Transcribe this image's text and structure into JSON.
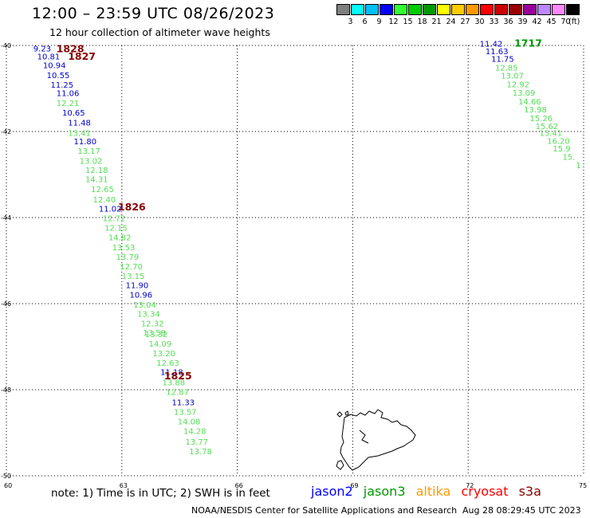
{
  "header": {
    "title": "12:00 – 23:59 UTC 08/26/2023",
    "subtitle": "12 hour collection of altimeter wave heights"
  },
  "color_scale": {
    "colors": [
      "#7f7f7f",
      "#00ffff",
      "#00bfff",
      "#0000ff",
      "#33ff33",
      "#00cc00",
      "#009900",
      "#ffff00",
      "#ffcc00",
      "#ff9900",
      "#ff0000",
      "#cc0000",
      "#990000",
      "#990099",
      "#bb88ff",
      "#ff88ff",
      "#000000"
    ],
    "labels": [
      "3",
      "6",
      "9",
      "12",
      "15",
      "18",
      "21",
      "24",
      "27",
      "30",
      "33",
      "36",
      "39",
      "42",
      "45",
      "70"
    ],
    "unit": "(ft)"
  },
  "map": {
    "lat_labels": [
      "-40",
      "-42",
      "-44",
      "-46",
      "-48",
      "-50"
    ],
    "lon_labels": [
      "60",
      "63",
      "66",
      "69",
      "72",
      "75"
    ],
    "lat_values": [
      -40,
      -42,
      -44,
      -46,
      -48,
      -50
    ],
    "lon_values": [
      60,
      63,
      66,
      69,
      72,
      75
    ],
    "grid": true
  },
  "satellite_colors": {
    "jason2": "#0000ff",
    "jason3": "#009900",
    "jason3_light": "#55dd55",
    "altika": "#ff9900",
    "cryosat": "#ff0000",
    "s3a": "#880000"
  },
  "chart_data": {
    "type": "scatter",
    "x_axis": "longitude (deg E)",
    "y_axis": "latitude (deg)",
    "xlim": [
      60,
      75
    ],
    "ylim": [
      -50,
      -40
    ],
    "time_labels": [
      {
        "text": "1828",
        "lon": 61.3,
        "lat": -40.16,
        "color": "#880000"
      },
      {
        "text": "1827",
        "lon": 61.6,
        "lat": -40.33,
        "color": "#880000"
      },
      {
        "text": "1826",
        "lon": 62.9,
        "lat": -43.83,
        "color": "#880000"
      },
      {
        "text": "1825",
        "lon": 64.1,
        "lat": -47.76,
        "color": "#880000"
      },
      {
        "text": "1717",
        "lon": 73.2,
        "lat": -40.03,
        "color": "#009900"
      }
    ],
    "tracks": [
      {
        "points": [
          {
            "v": "9.23",
            "lon": 60.7,
            "lat": -40.14,
            "c": "b"
          },
          {
            "v": "10.81",
            "lon": 60.8,
            "lat": -40.32,
            "c": "b"
          },
          {
            "v": "10.94",
            "lon": 60.95,
            "lat": -40.53,
            "c": "b"
          },
          {
            "v": "10.55",
            "lon": 61.05,
            "lat": -40.76,
            "c": "b"
          },
          {
            "v": "11.25",
            "lon": 61.15,
            "lat": -40.98,
            "c": "b"
          },
          {
            "v": "11.06",
            "lon": 61.3,
            "lat": -41.18,
            "c": "b"
          },
          {
            "v": "12.21",
            "lon": 61.3,
            "lat": -41.41,
            "c": "g"
          },
          {
            "v": "10.65",
            "lon": 61.45,
            "lat": -41.63,
            "c": "b"
          },
          {
            "v": "11.48",
            "lon": 61.6,
            "lat": -41.86,
            "c": "b"
          },
          {
            "v": "13.41",
            "lon": 61.6,
            "lat": -42.1,
            "c": "g"
          },
          {
            "v": "11.80",
            "lon": 61.75,
            "lat": -42.3,
            "c": "b"
          },
          {
            "v": "13.17",
            "lon": 61.85,
            "lat": -42.52,
            "c": "g"
          },
          {
            "v": "13.02",
            "lon": 61.9,
            "lat": -42.75,
            "c": "g"
          },
          {
            "v": "12.18",
            "lon": 62.05,
            "lat": -42.96,
            "c": "g"
          },
          {
            "v": "14.31",
            "lon": 62.05,
            "lat": -43.18,
            "c": "g"
          },
          {
            "v": "12.65",
            "lon": 62.2,
            "lat": -43.41,
            "c": "g"
          },
          {
            "v": "12.40",
            "lon": 62.25,
            "lat": -43.65,
            "c": "g"
          },
          {
            "v": "11.02",
            "lon": 62.4,
            "lat": -43.86,
            "c": "b"
          },
          {
            "v": "12.72",
            "lon": 62.5,
            "lat": -44.08,
            "c": "g"
          },
          {
            "v": "12.15",
            "lon": 62.55,
            "lat": -44.31,
            "c": "g"
          },
          {
            "v": "14.82",
            "lon": 62.65,
            "lat": -44.53,
            "c": "g"
          },
          {
            "v": "13.53",
            "lon": 62.75,
            "lat": -44.76,
            "c": "g"
          },
          {
            "v": "13.79",
            "lon": 62.85,
            "lat": -44.98,
            "c": "g"
          },
          {
            "v": "12.70",
            "lon": 62.95,
            "lat": -45.2,
            "c": "g"
          },
          {
            "v": "13.15",
            "lon": 63.0,
            "lat": -45.43,
            "c": "g"
          },
          {
            "v": "11.90",
            "lon": 63.1,
            "lat": -45.64,
            "c": "b"
          },
          {
            "v": "10.96",
            "lon": 63.2,
            "lat": -45.86,
            "c": "b"
          },
          {
            "v": "13.04",
            "lon": 63.3,
            "lat": -46.09,
            "c": "g"
          },
          {
            "v": "13.34",
            "lon": 63.4,
            "lat": -46.31,
            "c": "g"
          },
          {
            "v": "12.32",
            "lon": 63.5,
            "lat": -46.53,
            "c": "g"
          },
          {
            "v": "13.59",
            "lon": 63.55,
            "lat": -46.74,
            "c": "g"
          },
          {
            "v": "13.32",
            "lon": 63.6,
            "lat": -46.78,
            "c": "g"
          },
          {
            "v": "14.09",
            "lon": 63.7,
            "lat": -47.0,
            "c": "g"
          },
          {
            "v": "13.20",
            "lon": 63.8,
            "lat": -47.22,
            "c": "g"
          },
          {
            "v": "12.63",
            "lon": 63.9,
            "lat": -47.44,
            "c": "g"
          },
          {
            "v": "11.18",
            "lon": 64.0,
            "lat": -47.66,
            "c": "b"
          },
          {
            "v": "13.88",
            "lon": 64.05,
            "lat": -47.9,
            "c": "g"
          },
          {
            "v": "12.87",
            "lon": 64.15,
            "lat": -48.12,
            "c": "g"
          },
          {
            "v": "11.33",
            "lon": 64.3,
            "lat": -48.36,
            "c": "b"
          },
          {
            "v": "13.57",
            "lon": 64.35,
            "lat": -48.58,
            "c": "g"
          },
          {
            "v": "14.08",
            "lon": 64.45,
            "lat": -48.81,
            "c": "g"
          },
          {
            "v": "14.28",
            "lon": 64.6,
            "lat": -49.03,
            "c": "g"
          },
          {
            "v": "13.77",
            "lon": 64.65,
            "lat": -49.28,
            "c": "g"
          },
          {
            "v": "13.78",
            "lon": 64.75,
            "lat": -49.5,
            "c": "g"
          }
        ]
      },
      {
        "points": [
          {
            "v": "11.42",
            "lon": 72.3,
            "lat": -40.03,
            "c": "b"
          },
          {
            "v": "11.63",
            "lon": 72.45,
            "lat": -40.2,
            "c": "b"
          },
          {
            "v": "11.75",
            "lon": 72.6,
            "lat": -40.38,
            "c": "b"
          },
          {
            "v": "12.85",
            "lon": 72.7,
            "lat": -40.58,
            "c": "g"
          },
          {
            "v": "13.07",
            "lon": 72.85,
            "lat": -40.77,
            "c": "g"
          },
          {
            "v": "12.92",
            "lon": 73.0,
            "lat": -40.97,
            "c": "g"
          },
          {
            "v": "13.09",
            "lon": 73.15,
            "lat": -41.17,
            "c": "g"
          },
          {
            "v": "14.66",
            "lon": 73.3,
            "lat": -41.37,
            "c": "g"
          },
          {
            "v": "13.98",
            "lon": 73.45,
            "lat": -41.56,
            "c": "g"
          },
          {
            "v": "15.26",
            "lon": 73.6,
            "lat": -41.76,
            "c": "g"
          },
          {
            "v": "15.62",
            "lon": 73.75,
            "lat": -41.94,
            "c": "g"
          },
          {
            "v": "15.41",
            "lon": 73.85,
            "lat": -42.1,
            "c": "g"
          },
          {
            "v": "16.20",
            "lon": 74.05,
            "lat": -42.29,
            "c": "g"
          },
          {
            "v": "15.9",
            "lon": 74.2,
            "lat": -42.46,
            "c": "g"
          },
          {
            "v": "15.",
            "lon": 74.45,
            "lat": -42.66,
            "c": "g"
          },
          {
            "v": "1",
            "lon": 74.8,
            "lat": -42.85,
            "c": "g"
          }
        ]
      }
    ]
  },
  "footer": {
    "note": "note: 1) Time is in UTC; 2) SWH is in feet",
    "satellites": [
      {
        "label": "jason2",
        "color": "#0000ff"
      },
      {
        "label": "jason3",
        "color": "#009900"
      },
      {
        "label": "altika",
        "color": "#ff9900"
      },
      {
        "label": "cryosat",
        "color": "#ff0000"
      },
      {
        "label": "s3a",
        "color": "#880000"
      }
    ],
    "credit": "NOAA/NESDIS Center for Satellite Applications and Research",
    "timestamp": "Aug 28 08:29:45 UTC 2023"
  }
}
